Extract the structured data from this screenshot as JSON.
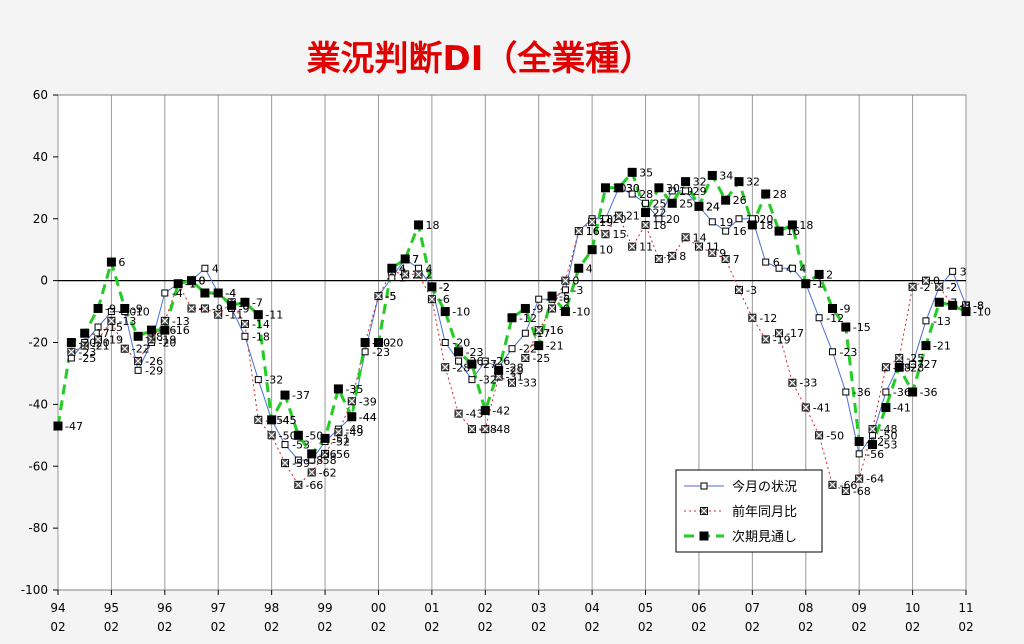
{
  "chart_data": {
    "type": "line",
    "title": "業況判断DI（全業種）",
    "ylim": [
      -100,
      60
    ],
    "yticks": [
      60,
      40,
      20,
      0,
      -20,
      -40,
      -60,
      -80,
      -100
    ],
    "xlim": [
      0,
      17
    ],
    "x_labels": [
      {
        "year": "94",
        "month": "02"
      },
      {
        "year": "95",
        "month": "02"
      },
      {
        "year": "96",
        "month": "02"
      },
      {
        "year": "97",
        "month": "02"
      },
      {
        "year": "98",
        "month": "02"
      },
      {
        "year": "99",
        "month": "02"
      },
      {
        "year": "00",
        "month": "02"
      },
      {
        "year": "01",
        "month": "02"
      },
      {
        "year": "02",
        "month": "02"
      },
      {
        "year": "03",
        "month": "02"
      },
      {
        "year": "04",
        "month": "02"
      },
      {
        "year": "05",
        "month": "02"
      },
      {
        "year": "06",
        "month": "02"
      },
      {
        "year": "07",
        "month": "02"
      },
      {
        "year": "08",
        "month": "02"
      },
      {
        "year": "09",
        "month": "02"
      },
      {
        "year": "10",
        "month": "02"
      },
      {
        "year": "11",
        "month": "02"
      }
    ],
    "grid": true,
    "legend_position": "bottom-right",
    "series": [
      {
        "name": "今月の状況",
        "color": "#4a6fd6",
        "style": "solid",
        "marker": "open-square",
        "points": [
          {
            "x": 0.25,
            "y": -25
          },
          {
            "x": 0.5,
            "y": -20
          },
          {
            "x": 0.75,
            "y": -15
          },
          {
            "x": 1.0,
            "y": -10
          },
          {
            "x": 1.25,
            "y": -10
          },
          {
            "x": 1.5,
            "y": -29
          },
          {
            "x": 1.75,
            "y": -20
          },
          {
            "x": 2.0,
            "y": -4
          },
          {
            "x": 2.25,
            "y": -1
          },
          {
            "x": 2.5,
            "y": 0
          },
          {
            "x": 2.75,
            "y": 4
          },
          {
            "x": 3.0,
            "y": -4
          },
          {
            "x": 3.25,
            "y": -9
          },
          {
            "x": 3.5,
            "y": -18
          },
          {
            "x": 3.75,
            "y": -32
          },
          {
            "x": 4.0,
            "y": -45
          },
          {
            "x": 4.25,
            "y": -53
          },
          {
            "x": 4.5,
            "y": -58
          },
          {
            "x": 4.75,
            "y": -58
          },
          {
            "x": 5.0,
            "y": -52
          },
          {
            "x": 5.25,
            "y": -48
          },
          {
            "x": 5.5,
            "y": -44
          },
          {
            "x": 5.75,
            "y": -23
          },
          {
            "x": 6.0,
            "y": -5
          },
          {
            "x": 6.25,
            "y": 1
          },
          {
            "x": 6.5,
            "y": 7
          },
          {
            "x": 6.75,
            "y": 4
          },
          {
            "x": 7.0,
            "y": -2
          },
          {
            "x": 7.25,
            "y": -20
          },
          {
            "x": 7.5,
            "y": -26
          },
          {
            "x": 7.75,
            "y": -32
          },
          {
            "x": 8.0,
            "y": -26
          },
          {
            "x": 8.25,
            "y": -28
          },
          {
            "x": 8.5,
            "y": -22
          },
          {
            "x": 8.75,
            "y": -17
          },
          {
            "x": 9.0,
            "y": -6
          },
          {
            "x": 9.25,
            "y": -6
          },
          {
            "x": 9.5,
            "y": -3
          },
          {
            "x": 9.75,
            "y": 16
          },
          {
            "x": 10.0,
            "y": 20
          },
          {
            "x": 10.25,
            "y": 20
          },
          {
            "x": 10.5,
            "y": 30
          },
          {
            "x": 10.75,
            "y": 28
          },
          {
            "x": 11.0,
            "y": 25
          },
          {
            "x": 11.25,
            "y": 20
          },
          {
            "x": 11.5,
            "y": 29
          },
          {
            "x": 11.75,
            "y": 29
          },
          {
            "x": 12.0,
            "y": 24
          },
          {
            "x": 12.25,
            "y": 19
          },
          {
            "x": 12.5,
            "y": 16
          },
          {
            "x": 12.75,
            "y": 20
          },
          {
            "x": 13.0,
            "y": 20
          },
          {
            "x": 13.25,
            "y": 6
          },
          {
            "x": 13.5,
            "y": 4
          },
          {
            "x": 13.75,
            "y": 4
          },
          {
            "x": 14.0,
            "y": -1
          },
          {
            "x": 14.25,
            "y": -12
          },
          {
            "x": 14.5,
            "y": -23
          },
          {
            "x": 14.75,
            "y": -36
          },
          {
            "x": 15.0,
            "y": -56
          },
          {
            "x": 15.25,
            "y": -50
          },
          {
            "x": 15.5,
            "y": -36
          },
          {
            "x": 15.75,
            "y": -27
          },
          {
            "x": 16.0,
            "y": -27
          },
          {
            "x": 16.25,
            "y": -13
          },
          {
            "x": 16.5,
            "y": -2
          },
          {
            "x": 16.75,
            "y": 3
          },
          {
            "x": 17.0,
            "y": -8
          }
        ]
      },
      {
        "name": "前年同月比",
        "color": "#d92020",
        "style": "dotted",
        "marker": "x-square",
        "points": [
          {
            "x": 0.25,
            "y": -23
          },
          {
            "x": 0.5,
            "y": -21
          },
          {
            "x": 0.75,
            "y": -19
          },
          {
            "x": 1.0,
            "y": -13
          },
          {
            "x": 1.25,
            "y": -22
          },
          {
            "x": 1.5,
            "y": -26
          },
          {
            "x": 1.75,
            "y": -19
          },
          {
            "x": 2.0,
            "y": -13
          },
          {
            "x": 2.25,
            "y": -1
          },
          {
            "x": 2.5,
            "y": -9
          },
          {
            "x": 2.75,
            "y": -9
          },
          {
            "x": 3.0,
            "y": -11
          },
          {
            "x": 3.25,
            "y": -7
          },
          {
            "x": 3.5,
            "y": -14
          },
          {
            "x": 3.75,
            "y": -45
          },
          {
            "x": 4.0,
            "y": -50
          },
          {
            "x": 4.25,
            "y": -59
          },
          {
            "x": 4.5,
            "y": -66
          },
          {
            "x": 4.75,
            "y": -62
          },
          {
            "x": 5.0,
            "y": -56
          },
          {
            "x": 5.25,
            "y": -49
          },
          {
            "x": 5.5,
            "y": -39
          },
          {
            "x": 5.75,
            "y": -20
          },
          {
            "x": 6.0,
            "y": -5
          },
          {
            "x": 6.25,
            "y": 3
          },
          {
            "x": 6.5,
            "y": 2
          },
          {
            "x": 6.75,
            "y": 2
          },
          {
            "x": 7.0,
            "y": -6
          },
          {
            "x": 7.25,
            "y": -28
          },
          {
            "x": 7.5,
            "y": -43
          },
          {
            "x": 7.75,
            "y": -48
          },
          {
            "x": 8.0,
            "y": -48
          },
          {
            "x": 8.25,
            "y": -31
          },
          {
            "x": 8.5,
            "y": -33
          },
          {
            "x": 8.75,
            "y": -25
          },
          {
            "x": 9.0,
            "y": -16
          },
          {
            "x": 9.25,
            "y": -9
          },
          {
            "x": 9.5,
            "y": 0
          },
          {
            "x": 9.75,
            "y": 16
          },
          {
            "x": 10.0,
            "y": 19
          },
          {
            "x": 10.25,
            "y": 15
          },
          {
            "x": 10.5,
            "y": 21
          },
          {
            "x": 10.75,
            "y": 11
          },
          {
            "x": 11.0,
            "y": 18
          },
          {
            "x": 11.25,
            "y": 7
          },
          {
            "x": 11.5,
            "y": 8
          },
          {
            "x": 11.75,
            "y": 14
          },
          {
            "x": 12.0,
            "y": 11
          },
          {
            "x": 12.25,
            "y": 9
          },
          {
            "x": 12.5,
            "y": 7
          },
          {
            "x": 12.75,
            "y": -3
          },
          {
            "x": 13.0,
            "y": -12
          },
          {
            "x": 13.25,
            "y": -19
          },
          {
            "x": 13.5,
            "y": -17
          },
          {
            "x": 13.75,
            "y": -33
          },
          {
            "x": 14.0,
            "y": -41
          },
          {
            "x": 14.25,
            "y": -50
          },
          {
            "x": 14.5,
            "y": -66
          },
          {
            "x": 14.75,
            "y": -68
          },
          {
            "x": 15.0,
            "y": -64
          },
          {
            "x": 15.25,
            "y": -48
          },
          {
            "x": 15.5,
            "y": -28
          },
          {
            "x": 15.75,
            "y": -25
          },
          {
            "x": 16.0,
            "y": -2
          },
          {
            "x": 16.25,
            "y": 0
          },
          {
            "x": 16.5,
            "y": -2
          },
          {
            "x": 16.75,
            "y": -8
          },
          {
            "x": 17.0,
            "y": -8
          }
        ]
      },
      {
        "name": "次期見通し",
        "color": "#22cc22",
        "style": "dashed",
        "marker": "filled-square",
        "points": [
          {
            "x": 0.0,
            "y": -47
          },
          {
            "x": 0.25,
            "y": -20
          },
          {
            "x": 0.5,
            "y": -17
          },
          {
            "x": 0.75,
            "y": -9
          },
          {
            "x": 1.0,
            "y": 6
          },
          {
            "x": 1.25,
            "y": -9
          },
          {
            "x": 1.5,
            "y": -18
          },
          {
            "x": 1.75,
            "y": -16
          },
          {
            "x": 2.0,
            "y": -16
          },
          {
            "x": 2.25,
            "y": -1
          },
          {
            "x": 2.5,
            "y": 0
          },
          {
            "x": 2.75,
            "y": -4
          },
          {
            "x": 3.0,
            "y": -4
          },
          {
            "x": 3.25,
            "y": -8
          },
          {
            "x": 3.5,
            "y": -7
          },
          {
            "x": 3.75,
            "y": -11
          },
          {
            "x": 4.0,
            "y": -45
          },
          {
            "x": 4.25,
            "y": -37
          },
          {
            "x": 4.5,
            "y": -50
          },
          {
            "x": 4.75,
            "y": -56
          },
          {
            "x": 5.0,
            "y": -51
          },
          {
            "x": 5.25,
            "y": -35
          },
          {
            "x": 5.5,
            "y": -44
          },
          {
            "x": 5.75,
            "y": -20
          },
          {
            "x": 6.0,
            "y": -20
          },
          {
            "x": 6.25,
            "y": 4
          },
          {
            "x": 6.5,
            "y": 7
          },
          {
            "x": 6.75,
            "y": 18
          },
          {
            "x": 7.0,
            "y": -2
          },
          {
            "x": 7.25,
            "y": -10
          },
          {
            "x": 7.5,
            "y": -23
          },
          {
            "x": 7.75,
            "y": -27
          },
          {
            "x": 8.0,
            "y": -42
          },
          {
            "x": 8.25,
            "y": -29
          },
          {
            "x": 8.5,
            "y": -12
          },
          {
            "x": 8.75,
            "y": -9
          },
          {
            "x": 9.0,
            "y": -21
          },
          {
            "x": 9.25,
            "y": -5
          },
          {
            "x": 9.5,
            "y": -10
          },
          {
            "x": 9.75,
            "y": 4
          },
          {
            "x": 10.0,
            "y": 10
          },
          {
            "x": 10.25,
            "y": 30
          },
          {
            "x": 10.5,
            "y": 30
          },
          {
            "x": 10.75,
            "y": 35
          },
          {
            "x": 11.0,
            "y": 22
          },
          {
            "x": 11.25,
            "y": 30
          },
          {
            "x": 11.5,
            "y": 25
          },
          {
            "x": 11.75,
            "y": 32
          },
          {
            "x": 12.0,
            "y": 24
          },
          {
            "x": 12.25,
            "y": 34
          },
          {
            "x": 12.5,
            "y": 26
          },
          {
            "x": 12.75,
            "y": 32
          },
          {
            "x": 13.0,
            "y": 18
          },
          {
            "x": 13.25,
            "y": 28
          },
          {
            "x": 13.5,
            "y": 16
          },
          {
            "x": 13.75,
            "y": 18
          },
          {
            "x": 14.0,
            "y": -1
          },
          {
            "x": 14.25,
            "y": 2
          },
          {
            "x": 14.5,
            "y": -9
          },
          {
            "x": 14.75,
            "y": -15
          },
          {
            "x": 15.0,
            "y": -52
          },
          {
            "x": 15.25,
            "y": -53
          },
          {
            "x": 15.5,
            "y": -41
          },
          {
            "x": 15.75,
            "y": -28
          },
          {
            "x": 16.0,
            "y": -36
          },
          {
            "x": 16.25,
            "y": -21
          },
          {
            "x": 16.5,
            "y": -7
          },
          {
            "x": 16.75,
            "y": -8
          },
          {
            "x": 17.0,
            "y": -10
          }
        ]
      }
    ]
  }
}
